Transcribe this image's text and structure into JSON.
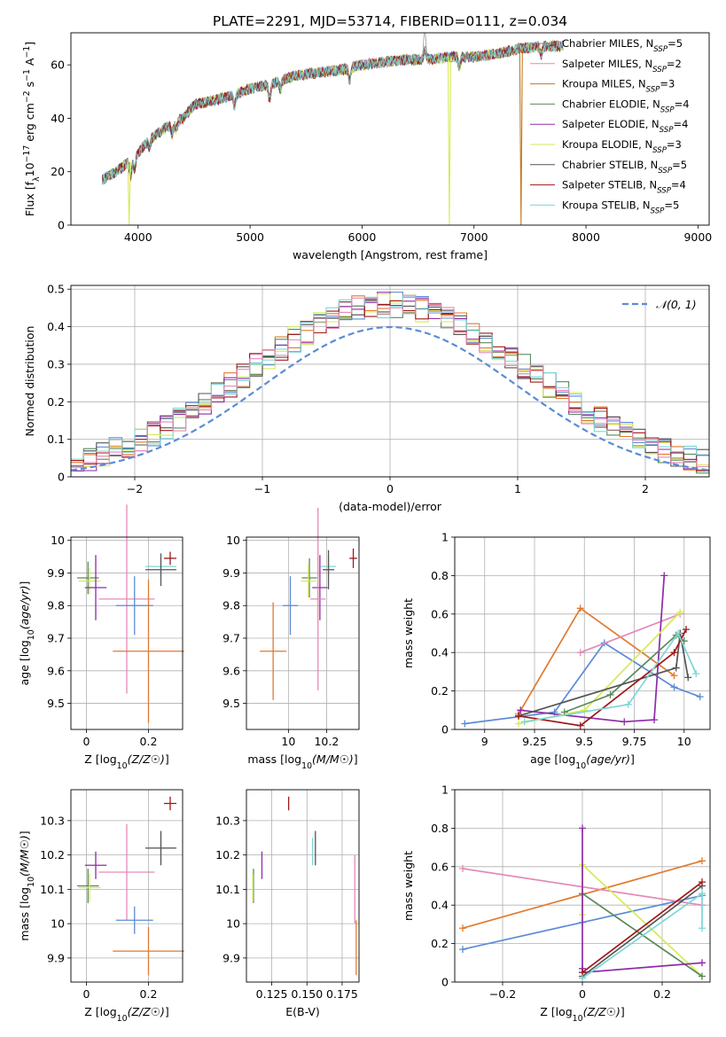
{
  "figure": {
    "title": "PLATE=2291, MJD=53714, FIBERID=0111, z=0.034"
  },
  "colors": {
    "Chabrier MILES": "#5b8bd6",
    "Salpeter MILES": "#e07a2e",
    "Kroupa MILES": "#c07a20",
    "Chabrier ELODIE": "#5a8a5a",
    "Salpeter ELODIE": "#8e2aa8",
    "Kroupa ELODIE": "#d6ea5a",
    "Chabrier STELIB": "#555555",
    "Salpeter STELIB": "#a01818",
    "Kroupa STELIB": "#7fd6d6",
    "pink": "#e58ab8",
    "gauss": "#5b8bd6"
  },
  "chart_data": [
    {
      "id": "spectrum",
      "type": "line",
      "xlabel": "wavelength [Angstrom, rest frame]",
      "ylabel": "Flux [f_λ10^-17 erg cm^-2 s^-1 A^-1]",
      "xlim": [
        3400,
        9100
      ],
      "ylim": [
        0,
        72
      ],
      "xticks": [
        4000,
        5000,
        6000,
        7000,
        8000,
        9000
      ],
      "yticks": [
        0,
        20,
        40,
        60
      ],
      "grid": false,
      "legend_position": "top-right",
      "legend": [
        {
          "name": "Chabrier MILES",
          "label": "Chabrier MILES, N",
          "sub": "SSP",
          "n": "=5",
          "color": "#5a9a8a"
        },
        {
          "name": "Salpeter MILES",
          "label": "Salpeter MILES, N",
          "sub": "SSP",
          "n": "=2",
          "color": "#e58ab8"
        },
        {
          "name": "Kroupa MILES",
          "label": "Kroupa MILES, N",
          "sub": "SSP",
          "n": "=3",
          "color": "#c07a20"
        },
        {
          "name": "Chabrier ELODIE",
          "label": "Chabrier ELODIE, N",
          "sub": "SSP",
          "n": "=4",
          "color": "#5a8a5a"
        },
        {
          "name": "Salpeter ELODIE",
          "label": "Salpeter ELODIE, N",
          "sub": "SSP",
          "n": "=4",
          "color": "#8e2aa8"
        },
        {
          "name": "Kroupa ELODIE",
          "label": "Kroupa ELODIE, N",
          "sub": "SSP",
          "n": "=3",
          "color": "#d6ea5a"
        },
        {
          "name": "Chabrier STELIB",
          "label": "Chabrier STELIB, N",
          "sub": "SSP",
          "n": "=5",
          "color": "#555555"
        },
        {
          "name": "Salpeter STELIB",
          "label": "Salpeter STELIB, N",
          "sub": "SSP",
          "n": "=4",
          "color": "#a01818"
        },
        {
          "name": "Kroupa STELIB",
          "label": "Kroupa STELIB, N",
          "sub": "SSP",
          "n": "=5",
          "color": "#7fd6d6"
        }
      ],
      "continuum": {
        "x": [
          3680,
          3800,
          3900,
          4000,
          4100,
          4200,
          4300,
          4400,
          4500,
          4600,
          4800,
          5000,
          5200,
          5400,
          5600,
          5800,
          6000,
          6200,
          6400,
          6600,
          6800,
          7000,
          7200,
          7400,
          7600,
          7800,
          8000,
          8200,
          8400,
          8600,
          8800,
          9000,
          9100
        ],
        "y": [
          17,
          20,
          23,
          27,
          32,
          35,
          38,
          40,
          45,
          46,
          48,
          51,
          53,
          56,
          57,
          58,
          60,
          61,
          62,
          62,
          63,
          63,
          64,
          66,
          67,
          67,
          67,
          66,
          65,
          65,
          64,
          63,
          62
        ]
      },
      "dips": [
        {
          "series": "Kroupa ELODIE",
          "x": 3920,
          "to": 0
        },
        {
          "series": "Kroupa ELODIE",
          "x": 6780,
          "to": 0
        },
        {
          "series": "Kroupa MILES",
          "x": 7420,
          "to": 0
        }
      ]
    },
    {
      "id": "residuals",
      "type": "histogram",
      "xlabel": "(data-model)/error",
      "ylabel": "Normed distribution",
      "xlim": [
        -2.5,
        2.5
      ],
      "ylim": [
        0,
        0.51
      ],
      "xticks": [
        -2,
        -1,
        0,
        1,
        2
      ],
      "yticks": [
        0.0,
        0.1,
        0.2,
        0.3,
        0.4,
        0.5
      ],
      "grid": true,
      "legend_position": "top-right",
      "gauss_label": "𝒩(0, 1)",
      "bin_width": 0.1,
      "series_colors": [
        "#5b8bd6",
        "#e07a2e",
        "#5a8a5a",
        "#8e2aa8",
        "#d6ea5a",
        "#555555",
        "#a01818",
        "#7fd6d6",
        "#e58ab8"
      ]
    },
    {
      "id": "age_vs_Z",
      "type": "errorbar",
      "xlabel": "Z [log10(Z/Z☉)]",
      "ylabel": "age [log10(age/yr)]",
      "xlim": [
        -0.05,
        0.31
      ],
      "ylim": [
        9.42,
        10.01
      ],
      "xticks": [
        0.0,
        0.2
      ],
      "yticks": [
        9.5,
        9.6,
        9.7,
        9.8,
        9.9,
        10.0
      ],
      "grid": true,
      "points": [
        {
          "color": "#a01818",
          "x": 0.27,
          "xerr": 0.02,
          "y": 9.945,
          "yerr": 0.02
        },
        {
          "color": "#7fd6d6",
          "x": 0.24,
          "xerr": 0.05,
          "y": 9.92,
          "yerr": 0.03
        },
        {
          "color": "#555555",
          "x": 0.24,
          "xerr": 0.05,
          "y": 9.91,
          "yerr": 0.05
        },
        {
          "color": "#5a8a5a",
          "x": 0.005,
          "xerr": 0.035,
          "y": 9.885,
          "yerr": 0.05
        },
        {
          "color": "#d6ea5a",
          "x": 0.01,
          "xerr": 0.035,
          "y": 9.875,
          "yerr": 0.04
        },
        {
          "color": "#8e2aa8",
          "x": 0.03,
          "xerr": 0.035,
          "y": 9.855,
          "yerr": 0.1
        },
        {
          "color": "#e58ab8",
          "x": 0.13,
          "xerr": 0.09,
          "y": 9.82,
          "yerr": 0.29
        },
        {
          "color": "#5b8bd6",
          "x": 0.155,
          "xerr": 0.06,
          "y": 9.8,
          "yerr": 0.09
        },
        {
          "color": "#e07a2e",
          "x": 0.2,
          "xerr": 0.115,
          "y": 9.66,
          "yerr": 0.22
        }
      ]
    },
    {
      "id": "age_vs_mass",
      "type": "errorbar",
      "xlabel": "mass [log10(M/M☉)]",
      "ylabel": "",
      "xlim": [
        9.78,
        10.37
      ],
      "ylim": [
        9.42,
        10.01
      ],
      "xticks": [
        10.0,
        10.2
      ],
      "yticks": [
        9.5,
        9.6,
        9.7,
        9.8,
        9.9,
        10.0
      ],
      "grid": true,
      "points": [
        {
          "color": "#a01818",
          "x": 10.34,
          "xerr": 0.02,
          "y": 9.945,
          "yerr": 0.03
        },
        {
          "color": "#7fd6d6",
          "x": 10.21,
          "xerr": 0.04,
          "y": 9.92,
          "yerr": 0.03
        },
        {
          "color": "#555555",
          "x": 10.21,
          "xerr": 0.03,
          "y": 9.91,
          "yerr": 0.06
        },
        {
          "color": "#5a8a5a",
          "x": 10.11,
          "xerr": 0.04,
          "y": 9.885,
          "yerr": 0.06
        },
        {
          "color": "#d6ea5a",
          "x": 10.105,
          "xerr": 0.04,
          "y": 9.875,
          "yerr": 0.05
        },
        {
          "color": "#8e2aa8",
          "x": 10.165,
          "xerr": 0.04,
          "y": 9.855,
          "yerr": 0.1
        },
        {
          "color": "#e58ab8",
          "x": 10.155,
          "xerr": 0.04,
          "y": 9.82,
          "yerr": 0.28
        },
        {
          "color": "#5b8bd6",
          "x": 10.01,
          "xerr": 0.04,
          "y": 9.8,
          "yerr": 0.09
        },
        {
          "color": "#e07a2e",
          "x": 9.92,
          "xerr": 0.07,
          "y": 9.66,
          "yerr": 0.15
        }
      ]
    },
    {
      "id": "weight_vs_age",
      "type": "line",
      "xlabel": "age [log10(age/yr)]",
      "ylabel": "mass weight",
      "xlim": [
        8.85,
        10.13
      ],
      "ylim": [
        0,
        1.0
      ],
      "xticks": [
        9.0,
        9.25,
        9.5,
        9.75,
        10.0
      ],
      "yticks": [
        0.0,
        0.2,
        0.4,
        0.6,
        0.8,
        1.0
      ],
      "grid": true,
      "series": [
        {
          "color": "#5b8bd6",
          "x": [
            8.9,
            9.35,
            9.6,
            9.95,
            10.08
          ],
          "y": [
            0.03,
            0.09,
            0.45,
            0.22,
            0.17
          ]
        },
        {
          "color": "#e07a2e",
          "x": [
            9.17,
            9.48,
            9.95
          ],
          "y": [
            0.08,
            0.63,
            0.28
          ]
        },
        {
          "color": "#e58ab8",
          "x": [
            9.48,
            9.98
          ],
          "y": [
            0.4,
            0.6
          ]
        },
        {
          "color": "#8e2aa8",
          "x": [
            9.18,
            9.7,
            9.85,
            9.9
          ],
          "y": [
            0.1,
            0.04,
            0.05,
            0.8
          ]
        },
        {
          "color": "#d6ea5a",
          "x": [
            9.17,
            9.5,
            9.98
          ],
          "y": [
            0.03,
            0.1,
            0.61
          ]
        },
        {
          "color": "#5a8a5a",
          "x": [
            9.4,
            9.63,
            9.96,
            10.0
          ],
          "y": [
            0.09,
            0.18,
            0.49,
            0.46
          ]
        },
        {
          "color": "#555555",
          "x": [
            9.17,
            9.96,
            9.98,
            10.02
          ],
          "y": [
            0.07,
            0.32,
            0.5,
            0.27
          ]
        },
        {
          "color": "#a01818",
          "x": [
            9.17,
            9.48,
            9.95,
            10.01
          ],
          "y": [
            0.07,
            0.02,
            0.4,
            0.52
          ]
        },
        {
          "color": "#7fd6d6",
          "x": [
            9.2,
            9.72,
            9.97,
            10.06
          ],
          "y": [
            0.04,
            0.13,
            0.5,
            0.29
          ]
        }
      ]
    },
    {
      "id": "mass_vs_Z",
      "type": "errorbar",
      "xlabel": "Z [log10(Z/Z☉)]",
      "ylabel": "mass [log10(M/M☉)]",
      "xlim": [
        -0.05,
        0.31
      ],
      "ylim": [
        9.83,
        10.39
      ],
      "xticks": [
        0.0,
        0.2
      ],
      "yticks": [
        9.9,
        10.0,
        10.1,
        10.2,
        10.3
      ],
      "grid": true,
      "points": [
        {
          "color": "#a01818",
          "x": 0.27,
          "xerr": 0.02,
          "y": 10.35,
          "yerr": 0.02
        },
        {
          "color": "#7fd6d6",
          "x": 0.24,
          "xerr": 0.05,
          "y": 10.22,
          "yerr": 0.04
        },
        {
          "color": "#555555",
          "x": 0.24,
          "xerr": 0.05,
          "y": 10.22,
          "yerr": 0.05
        },
        {
          "color": "#8e2aa8",
          "x": 0.03,
          "xerr": 0.035,
          "y": 10.17,
          "yerr": 0.04
        },
        {
          "color": "#e58ab8",
          "x": 0.13,
          "xerr": 0.09,
          "y": 10.15,
          "yerr": 0.14
        },
        {
          "color": "#5a8a5a",
          "x": 0.005,
          "xerr": 0.035,
          "y": 10.11,
          "yerr": 0.05
        },
        {
          "color": "#d6ea5a",
          "x": 0.01,
          "xerr": 0.035,
          "y": 10.105,
          "yerr": 0.04
        },
        {
          "color": "#5b8bd6",
          "x": 0.155,
          "xerr": 0.06,
          "y": 10.01,
          "yerr": 0.04
        },
        {
          "color": "#e07a2e",
          "x": 0.2,
          "xerr": 0.115,
          "y": 9.92,
          "yerr": 0.07
        }
      ]
    },
    {
      "id": "mass_vs_EBV",
      "type": "errorbar",
      "xlabel": "E(B-V)",
      "ylabel": "",
      "xlim": [
        0.107,
        0.187
      ],
      "ylim": [
        9.83,
        10.39
      ],
      "xticks": [
        0.125,
        0.15,
        0.175
      ],
      "xticklabels": [
        "0.125",
        "0.150",
        "0.175"
      ],
      "yticks": [
        9.9,
        10.0,
        10.1,
        10.2,
        10.3
      ],
      "grid": true,
      "points": [
        {
          "color": "#a01818",
          "x": 0.137,
          "xerr": 0,
          "y": 10.35,
          "yerr": 0.02
        },
        {
          "color": "#555555",
          "x": 0.156,
          "xerr": 0,
          "y": 10.22,
          "yerr": 0.05
        },
        {
          "color": "#7fd6d6",
          "x": 0.154,
          "xerr": 0,
          "y": 10.21,
          "yerr": 0.04
        },
        {
          "color": "#8e2aa8",
          "x": 0.118,
          "xerr": 0,
          "y": 10.17,
          "yerr": 0.04
        },
        {
          "color": "#5a8a5a",
          "x": 0.112,
          "xerr": 0,
          "y": 10.11,
          "yerr": 0.05
        },
        {
          "color": "#d6ea5a",
          "x": 0.1115,
          "xerr": 0,
          "y": 10.105,
          "yerr": 0.04
        },
        {
          "color": "#e58ab8",
          "x": 0.184,
          "xerr": 0,
          "y": 10.1,
          "yerr": 0.1
        },
        {
          "color": "#e07a2e",
          "x": 0.185,
          "xerr": 0,
          "y": 9.93,
          "yerr": 0.08
        }
      ]
    },
    {
      "id": "weight_vs_Z",
      "type": "line",
      "xlabel": "Z [log10(Z/Z☉)]",
      "ylabel": "mass weight",
      "xlim": [
        -0.32,
        0.32
      ],
      "ylim": [
        0,
        1.0
      ],
      "xticks": [
        -0.2,
        0.0,
        0.2
      ],
      "yticks": [
        0.0,
        0.2,
        0.4,
        0.6,
        0.8,
        1.0
      ],
      "grid": true,
      "series": [
        {
          "color": "#5b8bd6",
          "x": [
            -0.3,
            0.0,
            0.3
          ],
          "y": [
            0.17,
            0.31,
            0.45
          ]
        },
        {
          "color": "#e07a2e",
          "x": [
            -0.3,
            0.3
          ],
          "y": [
            0.28,
            0.63
          ]
        },
        {
          "color": "#e58ab8",
          "x": [
            -0.3,
            0.3
          ],
          "y": [
            0.59,
            0.4
          ]
        },
        {
          "color": "#d6ea5a",
          "x": [
            0.0,
            0.0,
            0.3
          ],
          "y": [
            0.35,
            0.61,
            0.03
          ]
        },
        {
          "color": "#5a8a5a",
          "x": [
            0.0,
            0.3
          ],
          "y": [
            0.46,
            0.03
          ]
        },
        {
          "color": "#8e2aa8",
          "x": [
            0.0,
            0.0,
            0.0,
            0.3
          ],
          "y": [
            0.8,
            0.07,
            0.05,
            0.1
          ]
        },
        {
          "color": "#555555",
          "x": [
            0.0,
            0.3
          ],
          "y": [
            0.03,
            0.5
          ]
        },
        {
          "color": "#a01818",
          "x": [
            0.0,
            0.3
          ],
          "y": [
            0.05,
            0.52
          ]
        },
        {
          "color": "#7fd6d6",
          "x": [
            0.0,
            0.3,
            0.3
          ],
          "y": [
            0.02,
            0.46,
            0.28
          ]
        }
      ]
    }
  ]
}
